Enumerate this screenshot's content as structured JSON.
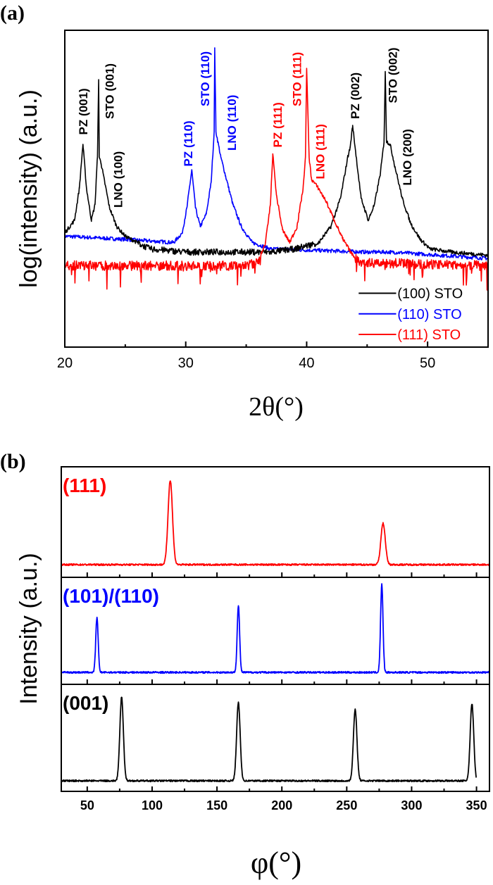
{
  "figure": {
    "panel_a_label": "(a)",
    "panel_b_label": "(b)"
  },
  "chart_data": [
    {
      "type": "line",
      "panel": "(a)",
      "xlabel": "2θ(°)",
      "ylabel": "log(intensity) (a.u.)",
      "xlim": [
        20,
        55
      ],
      "ylim": [
        0,
        1
      ],
      "x_ticks": [
        20,
        30,
        40,
        50
      ],
      "x_minor_step": 5,
      "y_tick_labels": false,
      "grid": false,
      "legend_position": "bottom-right",
      "series": [
        {
          "name": "(100) STO",
          "color": "#000000",
          "points": [
            [
              20,
              0.36
            ],
            [
              20.8,
              0.4
            ],
            [
              21.2,
              0.5
            ],
            [
              21.5,
              0.64
            ],
            [
              21.8,
              0.5
            ],
            [
              22.2,
              0.4
            ],
            [
              22.5,
              0.45
            ],
            [
              22.7,
              0.6
            ],
            [
              22.8,
              0.84
            ],
            [
              22.85,
              0.6
            ],
            [
              23.0,
              0.58
            ],
            [
              23.3,
              0.52
            ],
            [
              23.7,
              0.44
            ],
            [
              24.3,
              0.38
            ],
            [
              25,
              0.35
            ],
            [
              26,
              0.33
            ],
            [
              27,
              0.31
            ],
            [
              30,
              0.3
            ],
            [
              35,
              0.3
            ],
            [
              37,
              0.3
            ],
            [
              39,
              0.31
            ],
            [
              41,
              0.33
            ],
            [
              42,
              0.38
            ],
            [
              42.8,
              0.47
            ],
            [
              43.4,
              0.6
            ],
            [
              43.6,
              0.63
            ],
            [
              43.8,
              0.7
            ],
            [
              44.1,
              0.6
            ],
            [
              44.5,
              0.47
            ],
            [
              45.1,
              0.4
            ],
            [
              45.6,
              0.45
            ],
            [
              46.1,
              0.55
            ],
            [
              46.4,
              0.65
            ],
            [
              46.5,
              0.87
            ],
            [
              46.6,
              0.65
            ],
            [
              46.9,
              0.64
            ],
            [
              47.3,
              0.57
            ],
            [
              47.9,
              0.47
            ],
            [
              48.6,
              0.39
            ],
            [
              49.4,
              0.34
            ],
            [
              50.2,
              0.31
            ],
            [
              52,
              0.3
            ],
            [
              55,
              0.29
            ]
          ]
        },
        {
          "name": "(110) STO",
          "color": "#0000ff",
          "points": [
            [
              20,
              0.35
            ],
            [
              25,
              0.34
            ],
            [
              29,
              0.33
            ],
            [
              29.7,
              0.36
            ],
            [
              30.1,
              0.44
            ],
            [
              30.5,
              0.56
            ],
            [
              30.8,
              0.44
            ],
            [
              31.2,
              0.38
            ],
            [
              31.7,
              0.42
            ],
            [
              32.1,
              0.52
            ],
            [
              32.35,
              0.68
            ],
            [
              32.4,
              0.94
            ],
            [
              32.5,
              0.68
            ],
            [
              32.9,
              0.6
            ],
            [
              33.3,
              0.54
            ],
            [
              33.9,
              0.45
            ],
            [
              34.6,
              0.38
            ],
            [
              35.5,
              0.33
            ],
            [
              37,
              0.31
            ],
            [
              45,
              0.3
            ],
            [
              47,
              0.3
            ],
            [
              55,
              0.28
            ]
          ]
        },
        {
          "name": "(111) STO",
          "color": "#ff0000",
          "points": [
            [
              20,
              0.26
            ],
            [
              35,
              0.26
            ],
            [
              36,
              0.27
            ],
            [
              36.6,
              0.33
            ],
            [
              37.0,
              0.45
            ],
            [
              37.2,
              0.61
            ],
            [
              37.5,
              0.48
            ],
            [
              38.0,
              0.37
            ],
            [
              38.6,
              0.33
            ],
            [
              39.2,
              0.38
            ],
            [
              39.7,
              0.5
            ],
            [
              39.9,
              0.6
            ],
            [
              40.0,
              0.88
            ],
            [
              40.2,
              0.6
            ],
            [
              40.4,
              0.53
            ],
            [
              41.0,
              0.5
            ],
            [
              41.6,
              0.46
            ],
            [
              42.3,
              0.4
            ],
            [
              43.0,
              0.34
            ],
            [
              43.8,
              0.29
            ],
            [
              44.5,
              0.27
            ],
            [
              55,
              0.26
            ]
          ]
        }
      ],
      "annotations": [
        {
          "text": "PZ (001)",
          "x": 21.5,
          "y": 0.67,
          "color": "#000000"
        },
        {
          "text": "STO (001)",
          "x": 23.7,
          "y": 0.72,
          "color": "#000000"
        },
        {
          "text": "LNO (100)",
          "x": 24.4,
          "y": 0.44,
          "color": "#000000"
        },
        {
          "text": "PZ (110)",
          "x": 30.2,
          "y": 0.57,
          "color": "#0000ff"
        },
        {
          "text": "STO (110)",
          "x": 31.6,
          "y": 0.76,
          "color": "#0000ff"
        },
        {
          "text": "LNO (110)",
          "x": 33.8,
          "y": 0.62,
          "color": "#0000ff"
        },
        {
          "text": "PZ (111)",
          "x": 37.6,
          "y": 0.63,
          "color": "#ff0000"
        },
        {
          "text": "STO (111)",
          "x": 39.2,
          "y": 0.76,
          "color": "#ff0000"
        },
        {
          "text": "LNO (111)",
          "x": 41.1,
          "y": 0.53,
          "color": "#ff0000"
        },
        {
          "text": "PZ (002)",
          "x": 44.0,
          "y": 0.72,
          "color": "#000000"
        },
        {
          "text": "STO (002)",
          "x": 47.1,
          "y": 0.77,
          "color": "#000000"
        },
        {
          "text": "LNO (200)",
          "x": 48.3,
          "y": 0.51,
          "color": "#000000"
        }
      ]
    },
    {
      "type": "line",
      "panel": "(b)",
      "xlabel": "φ(°)",
      "ylabel": "Intensity (a.u.)",
      "xlim": [
        30,
        360
      ],
      "x_ticks": [
        50,
        100,
        150,
        200,
        250,
        300,
        350
      ],
      "x_minor_step": 25,
      "y_tick_labels": false,
      "grid": false,
      "layout": "stacked",
      "series": [
        {
          "name": "(111)",
          "color": "#ff0000",
          "x_range": [
            30,
            360
          ],
          "peaks": [
            {
              "phi": 114,
              "rel_intensity": 1.0,
              "fwhm": 4.0
            },
            {
              "phi": 278,
              "rel_intensity": 0.49,
              "fwhm": 4.0
            }
          ]
        },
        {
          "name": "(101)/(110)",
          "color": "#0000ff",
          "x_range": [
            30,
            360
          ],
          "peaks": [
            {
              "phi": 57.5,
              "rel_intensity": 0.62,
              "fwhm": 2.2
            },
            {
              "phi": 166.5,
              "rel_intensity": 0.76,
              "fwhm": 2.2
            },
            {
              "phi": 277,
              "rel_intensity": 1.0,
              "fwhm": 2.2
            }
          ]
        },
        {
          "name": "(001)",
          "color": "#000000",
          "x_range": [
            30,
            350
          ],
          "peaks": [
            {
              "phi": 76.5,
              "rel_intensity": 1.0,
              "fwhm": 3.2
            },
            {
              "phi": 166.5,
              "rel_intensity": 0.93,
              "fwhm": 3.2
            },
            {
              "phi": 256.5,
              "rel_intensity": 0.85,
              "fwhm": 3.2
            },
            {
              "phi": 346.5,
              "rel_intensity": 0.92,
              "fwhm": 3.2
            }
          ]
        }
      ]
    }
  ]
}
